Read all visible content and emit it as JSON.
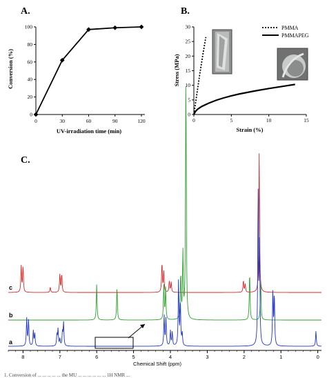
{
  "chart_data": [
    {
      "panel": "A.",
      "type": "line",
      "xlabel": "UV-irradiation time (min)",
      "ylabel": "Conversion (%)",
      "x": [
        0,
        30,
        60,
        90,
        120
      ],
      "y": [
        0,
        62,
        97,
        99,
        100
      ],
      "xlim": [
        0,
        120
      ],
      "ylim": [
        0,
        100
      ],
      "xticks": [
        "0",
        "30",
        "60",
        "90",
        "120"
      ],
      "yticks": [
        "0",
        "20",
        "40",
        "60",
        "80",
        "100"
      ],
      "markers": "diamond",
      "color": "#000000"
    },
    {
      "panel": "B.",
      "type": "line",
      "xlabel": "Strain (%)",
      "ylabel": "Stress (MPa)",
      "xlim": [
        0,
        15
      ],
      "ylim": [
        0,
        30
      ],
      "xticks": [
        "0",
        "5",
        "10",
        "15"
      ],
      "yticks": [
        "0",
        "5",
        "10",
        "15",
        "20",
        "25",
        "30"
      ],
      "legend_position": "top-right",
      "series": [
        {
          "name": "PMMA",
          "style": "dotted",
          "x": [
            0,
            0.4,
            0.8,
            1.2,
            1.6
          ],
          "y": [
            0,
            7,
            14,
            20.5,
            26.5
          ]
        },
        {
          "name": "PMMAPEG",
          "style": "solid",
          "x": [
            0,
            0.2,
            0.5,
            1,
            2,
            3,
            4,
            5,
            6,
            8,
            10,
            12,
            13.5
          ],
          "y": [
            0,
            1.0,
            1.8,
            2.7,
            3.9,
            4.9,
            5.7,
            6.4,
            7.0,
            8.0,
            8.9,
            9.7,
            10.3
          ]
        }
      ],
      "insets": [
        "fractured-specimen-micrograph-pmma",
        "fractured-specimen-micrograph-pmmapeg"
      ]
    },
    {
      "panel": "C.",
      "type": "line",
      "xlabel": "Chemical Shift (ppm)",
      "xlim": [
        8.4,
        -0.1
      ],
      "xticks": [
        "8",
        "7",
        "6",
        "5",
        "4",
        "3",
        "2",
        "1",
        "0"
      ],
      "series": [
        {
          "name": "c",
          "color": "#d62728",
          "peaks": [
            [
              8.05,
              88
            ],
            [
              8.0,
              88
            ],
            [
              7.26,
              18
            ],
            [
              7.0,
              62
            ],
            [
              6.95,
              62
            ],
            [
              4.23,
              100
            ],
            [
              4.18,
              70
            ],
            [
              4.03,
              38
            ],
            [
              3.98,
              34
            ],
            [
              2.02,
              40
            ],
            [
              1.97,
              28
            ],
            [
              1.59,
              470
            ]
          ]
        },
        {
          "name": "b",
          "color": "#2ca02c",
          "peaks": [
            [
              6.0,
              52
            ],
            [
              5.45,
              48
            ],
            [
              4.18,
              50
            ],
            [
              4.13,
              46
            ],
            [
              3.72,
              65
            ],
            [
              3.66,
              95
            ],
            [
              3.58,
              362
            ],
            [
              1.85,
              70
            ],
            [
              1.55,
              58
            ]
          ]
        },
        {
          "name": "a",
          "color": "#1f35c8",
          "peaks": [
            [
              7.9,
              40
            ],
            [
              7.85,
              38
            ],
            [
              7.72,
              22
            ],
            [
              7.68,
              18
            ],
            [
              7.08,
              16
            ],
            [
              7.05,
              24
            ],
            [
              7.0,
              10
            ],
            [
              6.93,
              20
            ],
            [
              6.9,
              34
            ],
            [
              4.17,
              44
            ],
            [
              4.12,
              40
            ],
            [
              4.0,
              22
            ],
            [
              3.95,
              20
            ],
            [
              3.78,
              95
            ],
            [
              3.73,
              64
            ],
            [
              3.68,
              18
            ],
            [
              1.62,
              218
            ],
            [
              1.58,
              140
            ],
            [
              1.22,
              78
            ],
            [
              1.18,
              74
            ],
            [
              0.05,
              22
            ]
          ]
        }
      ]
    }
  ],
  "caption": "1. Conversion of ... ... ... ... ... the MU ... ... ... ... ... ... 1H NMR ..."
}
